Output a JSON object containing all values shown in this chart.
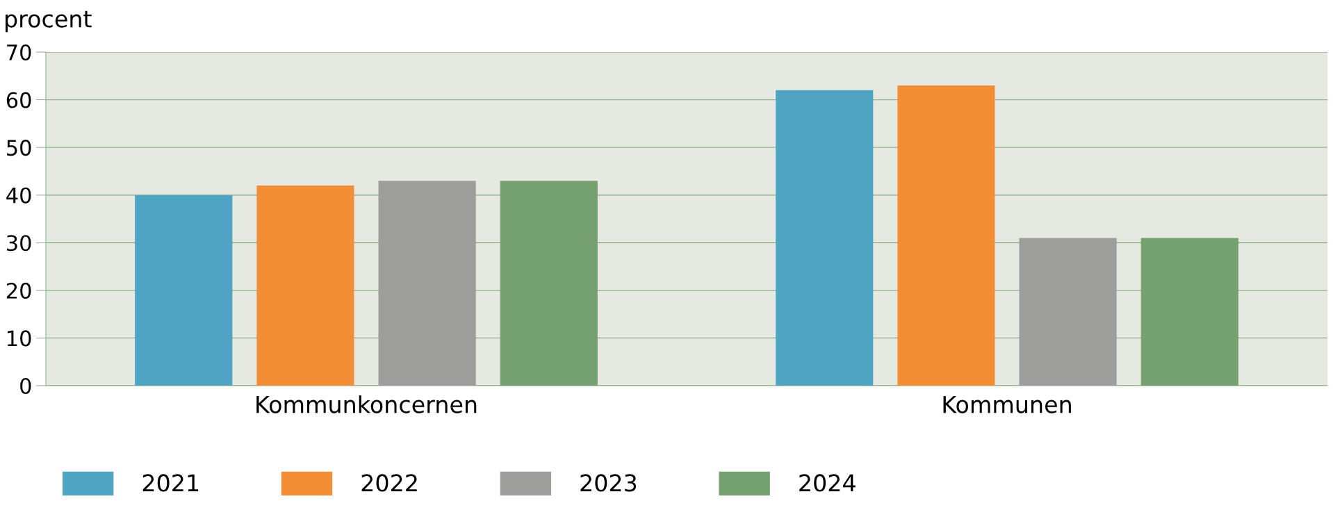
{
  "chart_data": {
    "type": "bar",
    "ylabel": "procent",
    "categories": [
      "Kommunkoncernen",
      "Kommunen"
    ],
    "series": [
      {
        "name": "2021",
        "color": "#4fa3c3",
        "values": [
          40,
          62
        ]
      },
      {
        "name": "2022",
        "color": "#f38d36",
        "values": [
          42,
          63
        ]
      },
      {
        "name": "2023",
        "color": "#9d9d9c",
        "values": [
          43,
          31
        ]
      },
      {
        "name": "2024",
        "color": "#75a06f",
        "values": [
          43,
          31
        ]
      }
    ],
    "ylim": [
      0,
      70
    ],
    "yticks": [
      0,
      10,
      20,
      30,
      40,
      50,
      60,
      70
    ],
    "grid": "y",
    "legend": "bottom"
  }
}
